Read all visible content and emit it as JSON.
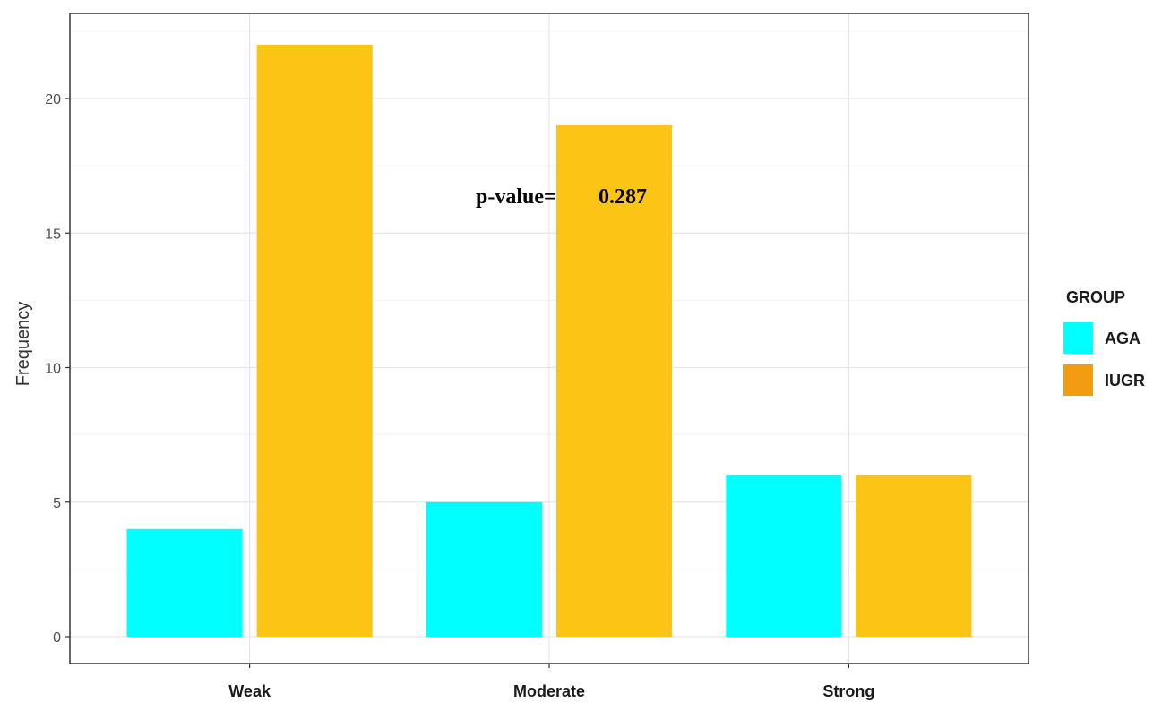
{
  "chart_data": {
    "type": "bar",
    "categories": [
      "Weak",
      "Moderate",
      "Strong"
    ],
    "series": [
      {
        "name": "AGA",
        "values": [
          4,
          5,
          6
        ]
      },
      {
        "name": "IUGR",
        "values": [
          22,
          19,
          6
        ]
      }
    ],
    "title": "",
    "xlabel": "",
    "ylabel": "Frequency",
    "ylim": [
      0,
      22.8
    ],
    "yticks": [
      "0",
      "5",
      "10",
      "15",
      "20"
    ],
    "grid": true,
    "legend": {
      "title": "GROUP",
      "placement": "right",
      "entries": [
        {
          "label": "AGA",
          "color": "#00FFFF"
        },
        {
          "label": "IUGR",
          "color": "#F39C12"
        }
      ]
    },
    "bar_colors": [
      "#00FFFF",
      "#FCC515"
    ],
    "annotation": {
      "label": "p-value=",
      "value": "0.287"
    }
  }
}
